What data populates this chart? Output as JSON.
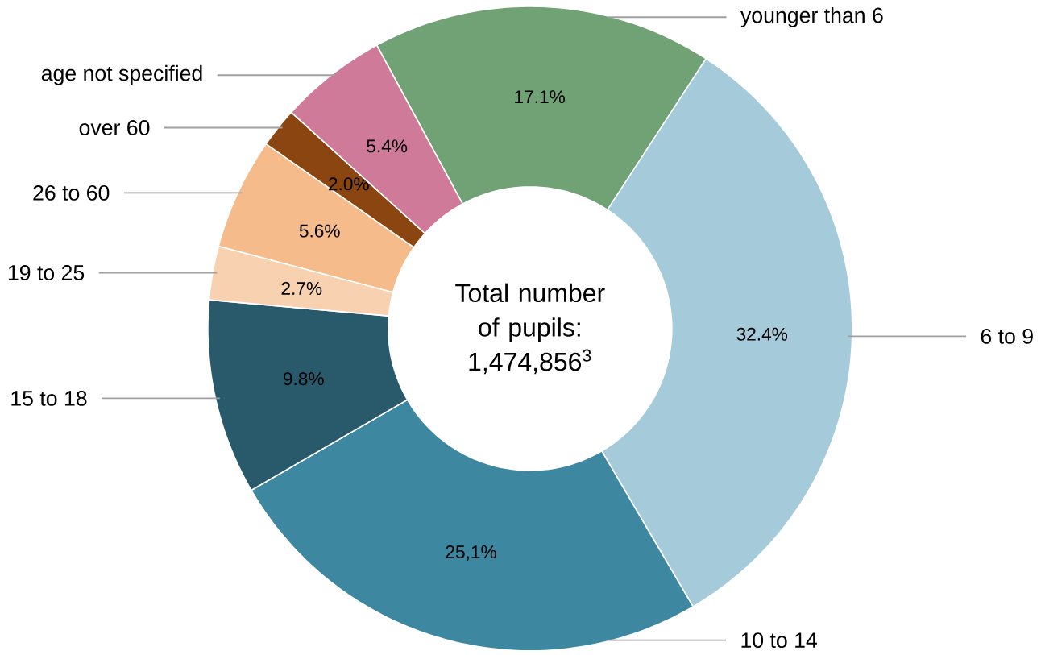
{
  "chart_data": {
    "type": "donut",
    "categories": [
      "younger than 6",
      "6 to 9",
      "10 to 14",
      "15 to 18",
      "19 to 25",
      "26 to 60",
      "over 60",
      "age not specified"
    ],
    "values": [
      17.1,
      32.4,
      25.1,
      9.8,
      2.7,
      5.6,
      2.0,
      5.4
    ],
    "value_labels": [
      "17.1%",
      "32.4%",
      "25,1%",
      "9.8%",
      "2.7%",
      "5.6%",
      "2.0%",
      "5.4%"
    ],
    "colors": [
      "#70a275",
      "#a5cbdb",
      "#3d87a1",
      "#285a6b",
      "#f8d2b0",
      "#f5bb8a",
      "#8b4510",
      "#cf7a98"
    ],
    "annotations": [
      "Total number of pupils: 1,474,856$^{3}$"
    ]
  }
}
